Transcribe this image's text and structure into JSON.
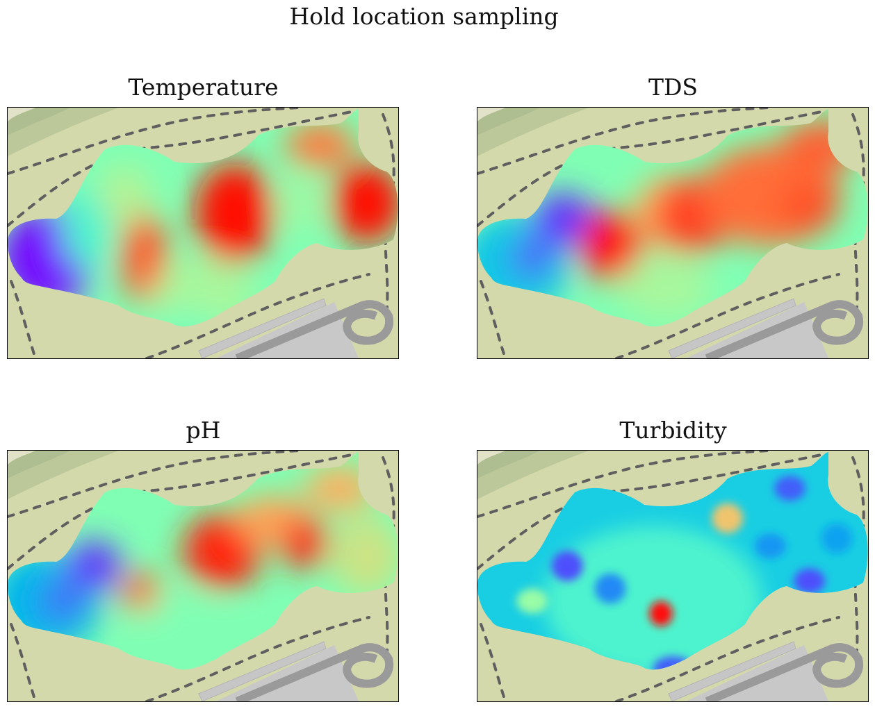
{
  "figure": {
    "title": "Hold location sampling"
  },
  "chart_data": [
    {
      "type": "heatmap",
      "title": "Temperature",
      "colormap": "rainbow",
      "blobs": [
        {
          "cx": 0.1,
          "cy": 0.6,
          "rx": 0.12,
          "ry": 0.2,
          "value": 0.02
        },
        {
          "cx": 0.2,
          "cy": 0.48,
          "rx": 0.06,
          "ry": 0.16,
          "value": 0.4
        },
        {
          "cx": 0.3,
          "cy": 0.35,
          "rx": 0.07,
          "ry": 0.12,
          "value": 0.6
        },
        {
          "cx": 0.35,
          "cy": 0.6,
          "rx": 0.06,
          "ry": 0.18,
          "value": 0.88
        },
        {
          "cx": 0.5,
          "cy": 0.75,
          "rx": 0.13,
          "ry": 0.14,
          "value": 0.58
        },
        {
          "cx": 0.46,
          "cy": 0.87,
          "rx": 0.08,
          "ry": 0.06,
          "value": 0.48
        },
        {
          "cx": 0.58,
          "cy": 0.42,
          "rx": 0.1,
          "ry": 0.2,
          "value": 0.99
        },
        {
          "cx": 0.75,
          "cy": 0.38,
          "rx": 0.05,
          "ry": 0.12,
          "value": 0.56
        },
        {
          "cx": 0.8,
          "cy": 0.15,
          "rx": 0.09,
          "ry": 0.09,
          "value": 0.84
        },
        {
          "cx": 0.92,
          "cy": 0.38,
          "rx": 0.09,
          "ry": 0.16,
          "value": 0.99
        }
      ]
    },
    {
      "type": "heatmap",
      "title": "TDS",
      "colormap": "rainbow",
      "blobs": [
        {
          "cx": 0.1,
          "cy": 0.62,
          "rx": 0.14,
          "ry": 0.2,
          "value": 0.28
        },
        {
          "cx": 0.22,
          "cy": 0.45,
          "rx": 0.08,
          "ry": 0.11,
          "value": 0.06
        },
        {
          "cx": 0.14,
          "cy": 0.6,
          "rx": 0.05,
          "ry": 0.07,
          "value": 0.1
        },
        {
          "cx": 0.34,
          "cy": 0.55,
          "rx": 0.08,
          "ry": 0.14,
          "value": 0.98
        },
        {
          "cx": 0.48,
          "cy": 0.72,
          "rx": 0.12,
          "ry": 0.12,
          "value": 0.58
        },
        {
          "cx": 0.5,
          "cy": 0.42,
          "rx": 0.1,
          "ry": 0.15,
          "value": 0.75
        },
        {
          "cx": 0.55,
          "cy": 0.9,
          "rx": 0.1,
          "ry": 0.07,
          "value": 0.5
        },
        {
          "cx": 0.55,
          "cy": 0.43,
          "rx": 0.1,
          "ry": 0.15,
          "value": 0.92
        },
        {
          "cx": 0.75,
          "cy": 0.35,
          "rx": 0.18,
          "ry": 0.2,
          "value": 0.86
        },
        {
          "cx": 0.88,
          "cy": 0.15,
          "rx": 0.1,
          "ry": 0.1,
          "value": 0.88
        },
        {
          "cx": 0.85,
          "cy": 0.4,
          "rx": 0.07,
          "ry": 0.1,
          "value": 0.9
        }
      ]
    },
    {
      "type": "heatmap",
      "title": "pH",
      "colormap": "rainbow",
      "blobs": [
        {
          "cx": 0.1,
          "cy": 0.6,
          "rx": 0.14,
          "ry": 0.2,
          "value": 0.25
        },
        {
          "cx": 0.22,
          "cy": 0.46,
          "rx": 0.07,
          "ry": 0.1,
          "value": 0.06
        },
        {
          "cx": 0.14,
          "cy": 0.6,
          "rx": 0.05,
          "ry": 0.07,
          "value": 0.12
        },
        {
          "cx": 0.34,
          "cy": 0.56,
          "rx": 0.05,
          "ry": 0.08,
          "value": 0.86
        },
        {
          "cx": 0.45,
          "cy": 0.72,
          "rx": 0.12,
          "ry": 0.14,
          "value": 0.5
        },
        {
          "cx": 0.55,
          "cy": 0.4,
          "rx": 0.1,
          "ry": 0.15,
          "value": 0.96
        },
        {
          "cx": 0.68,
          "cy": 0.28,
          "rx": 0.1,
          "ry": 0.1,
          "value": 0.78
        },
        {
          "cx": 0.76,
          "cy": 0.37,
          "rx": 0.06,
          "ry": 0.1,
          "value": 0.95
        },
        {
          "cx": 0.85,
          "cy": 0.15,
          "rx": 0.09,
          "ry": 0.09,
          "value": 0.76
        },
        {
          "cx": 0.92,
          "cy": 0.42,
          "rx": 0.09,
          "ry": 0.16,
          "value": 0.65
        }
      ]
    },
    {
      "type": "heatmap",
      "title": "Turbidity",
      "colormap": "rainbow",
      "base_value": 0.3,
      "blobs": [
        {
          "cx": 0.45,
          "cy": 0.6,
          "rx": 0.28,
          "ry": 0.3,
          "value": 0.4
        },
        {
          "cx": 0.64,
          "cy": 0.27,
          "rx": 0.04,
          "ry": 0.06,
          "value": 0.72
        },
        {
          "cx": 0.23,
          "cy": 0.46,
          "rx": 0.04,
          "ry": 0.06,
          "value": 0.1
        },
        {
          "cx": 0.34,
          "cy": 0.55,
          "rx": 0.04,
          "ry": 0.06,
          "value": 0.18
        },
        {
          "cx": 0.14,
          "cy": 0.6,
          "rx": 0.04,
          "ry": 0.05,
          "value": 0.55
        },
        {
          "cx": 0.47,
          "cy": 0.65,
          "rx": 0.03,
          "ry": 0.05,
          "value": 0.98
        },
        {
          "cx": 0.5,
          "cy": 0.87,
          "rx": 0.05,
          "ry": 0.05,
          "value": 0.12
        },
        {
          "cx": 0.8,
          "cy": 0.15,
          "rx": 0.04,
          "ry": 0.05,
          "value": 0.12
        },
        {
          "cx": 0.75,
          "cy": 0.38,
          "rx": 0.04,
          "ry": 0.05,
          "value": 0.2
        },
        {
          "cx": 0.85,
          "cy": 0.52,
          "rx": 0.04,
          "ry": 0.05,
          "value": 0.1
        },
        {
          "cx": 0.92,
          "cy": 0.35,
          "rx": 0.04,
          "ry": 0.06,
          "value": 0.22
        }
      ]
    }
  ]
}
